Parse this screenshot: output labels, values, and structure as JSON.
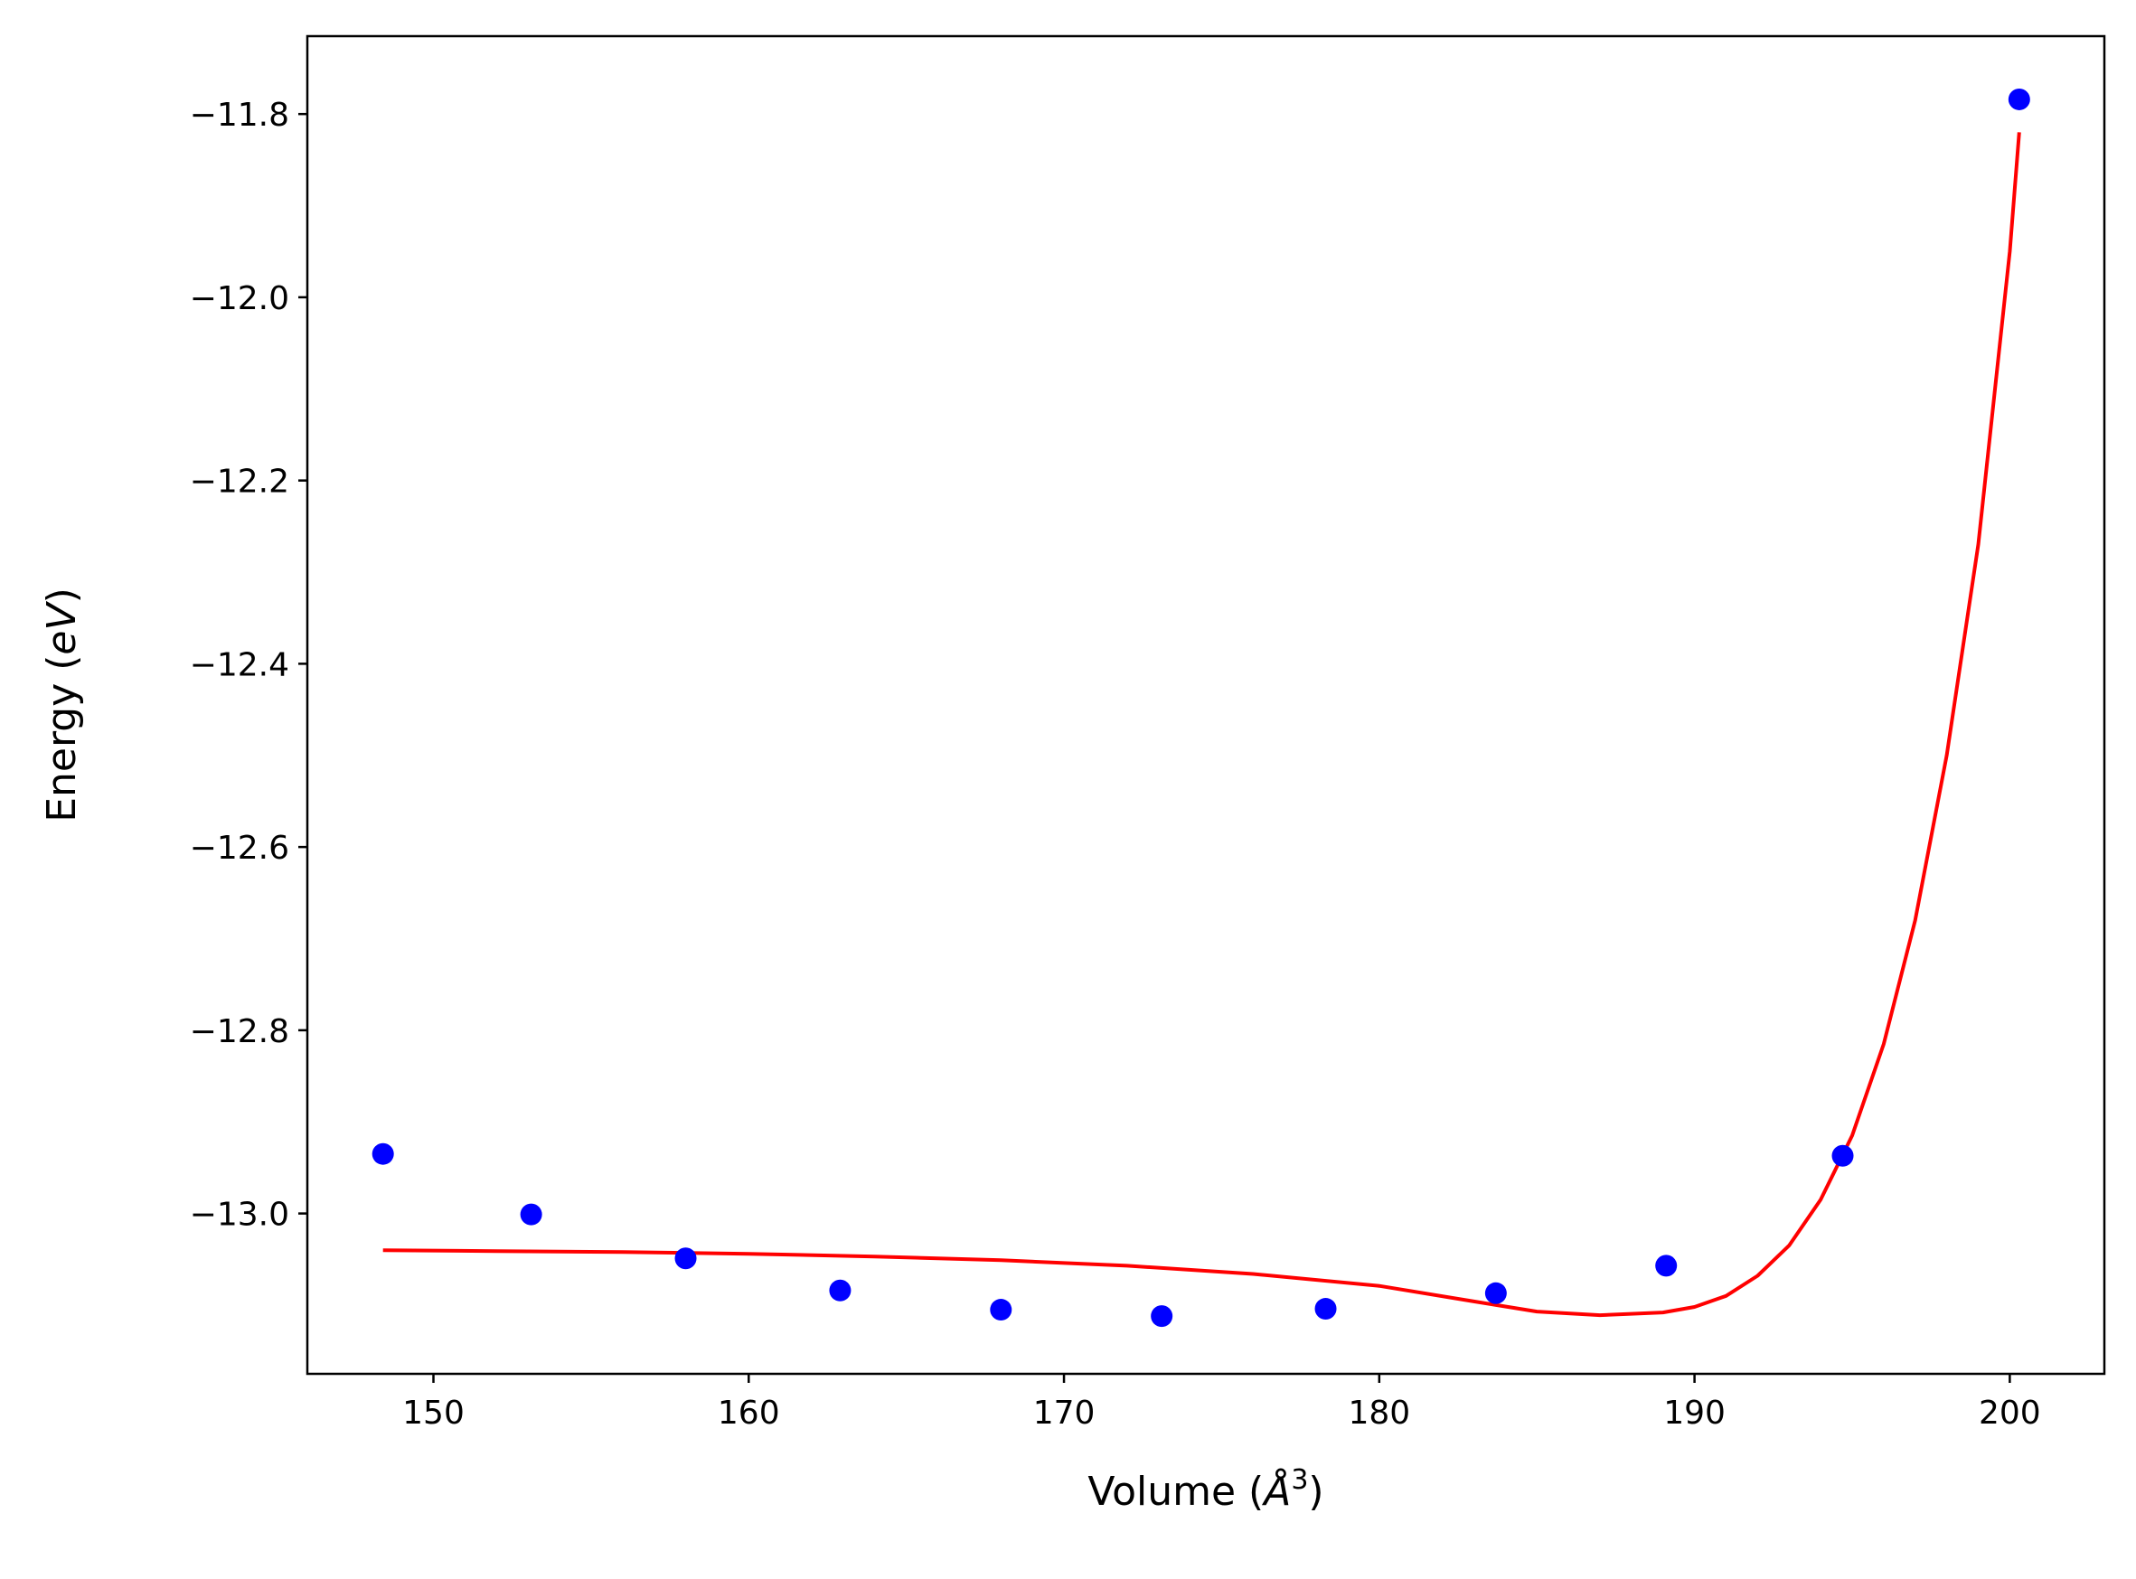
{
  "chart_data": {
    "type": "scatter",
    "title": "",
    "xlabel": "Volume (Å³)",
    "xlabel_parts": {
      "prefix": "Volume (",
      "symbol": "Å",
      "superscript": "3",
      "suffix": ")"
    },
    "ylabel": "Energy (eV)",
    "ylabel_parts": {
      "prefix": "Energy (",
      "italic": "eV",
      "suffix": ")"
    },
    "xlim": [
      146,
      203
    ],
    "ylim": [
      -13.175,
      -11.715
    ],
    "xticks": [
      150,
      160,
      170,
      180,
      190,
      200
    ],
    "xtick_labels": [
      "150",
      "160",
      "170",
      "180",
      "190",
      "200"
    ],
    "yticks": [
      -13.0,
      -12.8,
      -12.6,
      -12.4,
      -12.2,
      -12.0,
      -11.8
    ],
    "ytick_labels": [
      "−13.0",
      "−12.8",
      "−12.6",
      "−12.4",
      "−12.2",
      "−12.0",
      "−11.8"
    ],
    "grid": false,
    "legend": "none",
    "series": [
      {
        "kind": "scatter",
        "color": "#0000ff",
        "x": [
          148.4,
          153.1,
          158.0,
          162.9,
          168.0,
          173.1,
          178.3,
          183.7,
          189.1,
          194.7,
          200.3
        ],
        "y": [
          -12.935,
          -13.001,
          -13.049,
          -13.084,
          -13.105,
          -13.112,
          -13.104,
          -13.087,
          -13.057,
          -12.937,
          -11.784
        ]
      },
      {
        "kind": "line",
        "color": "#ff0000",
        "x": [
          148.4,
          152.0,
          156.0,
          160.0,
          164.0,
          168.0,
          172.0,
          176.0,
          180.0,
          183.0,
          185.0,
          187.0,
          189.0,
          190.0,
          191.0,
          192.0,
          193.0,
          194.0,
          195.0,
          196.0,
          197.0,
          198.0,
          199.0,
          200.0,
          200.3
        ],
        "y": [
          -13.04,
          -13.041,
          -13.042,
          -13.044,
          -13.047,
          -13.051,
          -13.057,
          -13.066,
          -13.079,
          -13.096,
          -13.107,
          -13.111,
          -13.108,
          -13.102,
          -13.09,
          -13.068,
          -13.035,
          -12.985,
          -12.915,
          -12.815,
          -12.68,
          -12.5,
          -12.27,
          -11.95,
          -11.82
        ]
      }
    ]
  }
}
